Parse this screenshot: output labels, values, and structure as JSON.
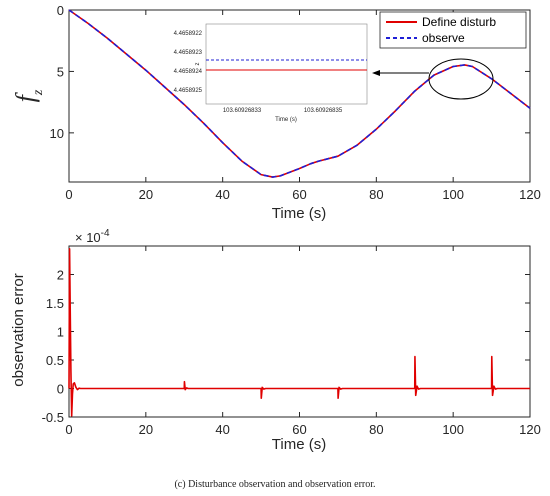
{
  "chart_data": [
    {
      "type": "line",
      "ylabel": "f_z",
      "ylabel_main": "f",
      "ylabel_sub": "z",
      "xlabel": "Time (s)",
      "xlim": [
        0,
        120
      ],
      "ylim": [
        0,
        14
      ],
      "y_reversed": true,
      "xticks": [
        0,
        20,
        40,
        60,
        80,
        100,
        120
      ],
      "yticks": [
        0,
        5,
        10
      ],
      "legend": {
        "placement": "top-right",
        "entries": [
          "Define disturb",
          "observe"
        ]
      },
      "series": [
        {
          "name": "Define disturb",
          "color": "#e00000",
          "style": "solid",
          "x": [
            0,
            5,
            10,
            15,
            20,
            25,
            30,
            35,
            40,
            45,
            50,
            53,
            55,
            60,
            63,
            65,
            70,
            75,
            80,
            85,
            90,
            95,
            100,
            103,
            105,
            110,
            115,
            120
          ],
          "y": [
            0,
            1.1,
            2.3,
            3.6,
            4.9,
            6.3,
            7.7,
            9.2,
            10.8,
            12.3,
            13.4,
            13.6,
            13.5,
            12.9,
            12.5,
            12.3,
            11.9,
            11.0,
            9.7,
            8.2,
            6.6,
            5.3,
            4.6,
            4.47,
            4.6,
            5.6,
            6.8,
            8.0
          ]
        },
        {
          "name": "observe",
          "color": "#1f1fd6",
          "style": "dashed",
          "x": [
            0,
            5,
            10,
            15,
            20,
            25,
            30,
            35,
            40,
            45,
            50,
            53,
            55,
            60,
            63,
            65,
            70,
            75,
            80,
            85,
            90,
            95,
            100,
            103,
            105,
            110,
            115,
            120
          ],
          "y": [
            0,
            1.1,
            2.3,
            3.6,
            4.9,
            6.3,
            7.7,
            9.2,
            10.8,
            12.3,
            13.4,
            13.6,
            13.5,
            12.9,
            12.5,
            12.3,
            11.9,
            11.0,
            9.7,
            8.2,
            6.6,
            5.3,
            4.6,
            4.47,
            4.6,
            5.6,
            6.8,
            8.0
          ]
        }
      ],
      "inset": {
        "xlabel": "Time (s)",
        "ylabel": "z",
        "xticks": [
          "103.60926833",
          "103.60926835"
        ],
        "yticks": [
          "4.4658922",
          "4.4658923",
          "4.4658924",
          "4.4658925"
        ],
        "ylim": [
          4.46589215,
          4.46589255
        ],
        "observe_value": 4.46589233,
        "define_value": 4.46589238
      }
    },
    {
      "type": "line",
      "ylabel": "observation error",
      "xlabel": "Time (s)",
      "xlim": [
        0,
        120
      ],
      "ylim": [
        -0.5,
        2.5
      ],
      "y_exponent_label": "× 10",
      "y_exponent": "-4",
      "xticks": [
        0,
        20,
        40,
        60,
        80,
        100,
        120
      ],
      "yticks": [
        -0.5,
        0,
        0.5,
        1,
        1.5,
        2
      ],
      "series": [
        {
          "name": "",
          "color": "#e00000",
          "x": [
            0,
            0.15,
            0.3,
            0.5,
            0.7,
            0.9,
            1.1,
            1.4,
            1.8,
            2.2,
            2.6,
            3,
            30,
            30.05,
            30.25,
            30.6,
            31,
            50,
            50.05,
            50.3,
            50.7,
            51.2,
            70,
            70.05,
            70.3,
            70.7,
            71.2,
            90,
            90.05,
            90.25,
            90.6,
            91,
            91.5,
            110,
            110.05,
            110.25,
            110.6,
            111,
            111.5,
            120
          ],
          "y": [
            0,
            2.45,
            1.5,
            0.3,
            -0.48,
            -0.1,
            0.08,
            0.1,
            0.02,
            -0.02,
            0.005,
            0,
            0,
            0.12,
            -0.02,
            0.01,
            0,
            0,
            -0.17,
            0.02,
            -0.01,
            0,
            0,
            -0.17,
            0.02,
            -0.01,
            0,
            0,
            0.56,
            -0.12,
            0.04,
            -0.01,
            0,
            0,
            0.56,
            -0.12,
            0.04,
            -0.01,
            0,
            0
          ]
        }
      ]
    }
  ],
  "caption": "(c) Disturbance observation and observation error."
}
